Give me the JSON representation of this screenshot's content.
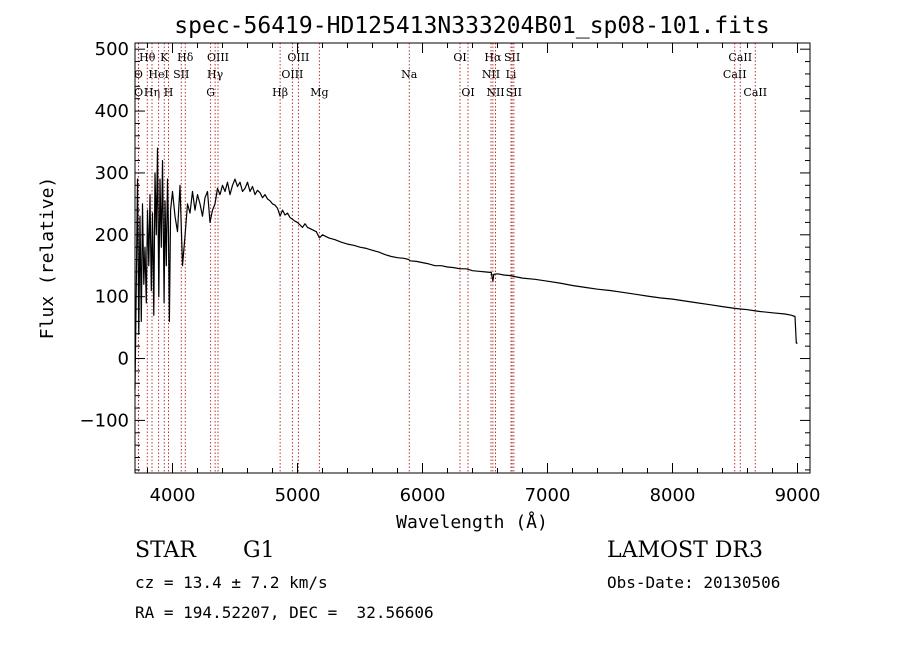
{
  "chart_data": {
    "type": "line",
    "title": "spec-56419-HD125413N333204B01_sp08-101.fits",
    "xlabel": "Wavelength (Å)",
    "ylabel": "Flux (relative)",
    "xlim": [
      3700,
      9100
    ],
    "ylim": [
      -185,
      510
    ],
    "xticks": [
      4000,
      5000,
      6000,
      7000,
      8000,
      9000
    ],
    "yticks": [
      -100,
      0,
      100,
      200,
      300,
      400,
      500
    ],
    "ytick_labels": [
      "−100",
      "0",
      "100",
      "200",
      "300",
      "400",
      "500"
    ],
    "series": [
      {
        "name": "flux",
        "x": [
          3700,
          3710,
          3720,
          3730,
          3740,
          3750,
          3760,
          3770,
          3780,
          3790,
          3800,
          3810,
          3820,
          3830,
          3840,
          3850,
          3860,
          3870,
          3880,
          3890,
          3900,
          3910,
          3920,
          3930,
          3933,
          3940,
          3950,
          3960,
          3968,
          3975,
          3985,
          4000,
          4020,
          4040,
          4060,
          4080,
          4101,
          4120,
          4140,
          4160,
          4180,
          4200,
          4220,
          4240,
          4260,
          4280,
          4300,
          4320,
          4340,
          4360,
          4380,
          4400,
          4420,
          4440,
          4460,
          4480,
          4500,
          4520,
          4540,
          4560,
          4580,
          4600,
          4620,
          4640,
          4660,
          4680,
          4700,
          4720,
          4740,
          4760,
          4780,
          4800,
          4820,
          4840,
          4861,
          4880,
          4900,
          4920,
          4940,
          4960,
          4980,
          5000,
          5020,
          5040,
          5060,
          5080,
          5100,
          5150,
          5175,
          5200,
          5250,
          5300,
          5350,
          5400,
          5450,
          5500,
          5550,
          5600,
          5650,
          5700,
          5750,
          5800,
          5850,
          5890,
          5900,
          5950,
          6000,
          6050,
          6100,
          6150,
          6200,
          6250,
          6300,
          6350,
          6400,
          6450,
          6500,
          6550,
          6563,
          6570,
          6600,
          6650,
          6700,
          6750,
          6800,
          6900,
          7000,
          7100,
          7200,
          7300,
          7400,
          7500,
          7600,
          7700,
          7800,
          7900,
          8000,
          8100,
          8200,
          8300,
          8400,
          8500,
          8542,
          8600,
          8662,
          8700,
          8800,
          8900,
          8950,
          8980,
          8990,
          9000
        ],
        "values": [
          -50,
          120,
          290,
          40,
          230,
          60,
          250,
          120,
          180,
          90,
          240,
          150,
          265,
          110,
          235,
          70,
          300,
          200,
          340,
          100,
          290,
          180,
          320,
          140,
          90,
          255,
          150,
          290,
          200,
          60,
          240,
          270,
          230,
          205,
          280,
          150,
          200,
          250,
          235,
          270,
          240,
          265,
          250,
          230,
          260,
          270,
          220,
          240,
          250,
          275,
          265,
          280,
          270,
          285,
          265,
          280,
          290,
          278,
          285,
          270,
          275,
          285,
          270,
          278,
          265,
          272,
          268,
          260,
          265,
          258,
          255,
          250,
          248,
          243,
          230,
          240,
          232,
          235,
          228,
          225,
          222,
          220,
          216,
          212,
          218,
          212,
          210,
          205,
          195,
          200,
          195,
          192,
          188,
          185,
          183,
          180,
          178,
          175,
          172,
          168,
          165,
          163,
          162,
          160,
          158,
          157,
          155,
          153,
          150,
          150,
          148,
          147,
          145,
          145,
          142,
          141,
          140,
          139,
          125,
          136,
          137,
          135,
          134,
          132,
          130,
          128,
          125,
          122,
          118,
          115,
          112,
          110,
          107,
          104,
          101,
          98,
          96,
          93,
          90,
          87,
          84,
          81,
          80,
          79,
          77,
          76,
          74,
          72,
          70,
          68,
          25,
          25
        ]
      }
    ],
    "lines": [
      {
        "label": "Hθ",
        "wavelength": 3798,
        "row": 1
      },
      {
        "label": "O",
        "wavelength": 3727,
        "row": 2
      },
      {
        "label": "O",
        "wavelength": 3729,
        "row": 3
      },
      {
        "label": "Hη",
        "wavelength": 3836,
        "row": 3
      },
      {
        "label": "K",
        "wavelength": 3934,
        "row": 1
      },
      {
        "label": "HeI",
        "wavelength": 3889,
        "row": 2
      },
      {
        "label": "H",
        "wavelength": 3968,
        "row": 3
      },
      {
        "label": "SII",
        "wavelength": 4070,
        "row": 2
      },
      {
        "label": "Hδ",
        "wavelength": 4102,
        "row": 1
      },
      {
        "label": "OIII",
        "wavelength": 4364,
        "row": 1
      },
      {
        "label": "Hγ",
        "wavelength": 4341,
        "row": 2
      },
      {
        "label": "G",
        "wavelength": 4305,
        "row": 3
      },
      {
        "label": "Hβ",
        "wavelength": 4861,
        "row": 3
      },
      {
        "label": "OIII",
        "wavelength": 5007,
        "row": 1
      },
      {
        "label": "OIII",
        "wavelength": 4959,
        "row": 2
      },
      {
        "label": "Mg",
        "wavelength": 5175,
        "row": 3
      },
      {
        "label": "Na",
        "wavelength": 5894,
        "row": 2
      },
      {
        "label": "OI",
        "wavelength": 6300,
        "row": 1
      },
      {
        "label": "OI",
        "wavelength": 6364,
        "row": 3
      },
      {
        "label": "Hα",
        "wavelength": 6563,
        "row": 1
      },
      {
        "label": "NII",
        "wavelength": 6548,
        "row": 2
      },
      {
        "label": "NII",
        "wavelength": 6584,
        "row": 3
      },
      {
        "label": "SII",
        "wavelength": 6717,
        "row": 1
      },
      {
        "label": "Li",
        "wavelength": 6708,
        "row": 2
      },
      {
        "label": "SII",
        "wavelength": 6731,
        "row": 3
      },
      {
        "label": "CaII",
        "wavelength": 8542,
        "row": 1
      },
      {
        "label": "CaII",
        "wavelength": 8498,
        "row": 2
      },
      {
        "label": "CaII",
        "wavelength": 8662,
        "row": 3
      }
    ]
  },
  "info": {
    "class": "STAR",
    "subclass": "G1",
    "survey": "LAMOST DR3",
    "cz": "cz = 13.4 ± 7.2 km/s",
    "obs_date": "Obs-Date: 20130506",
    "radec": "RA = 194.52207, DEC =  32.56606"
  },
  "colors": {
    "line_marker": "#b22222",
    "spectrum": "#000000",
    "axes": "#000000"
  }
}
